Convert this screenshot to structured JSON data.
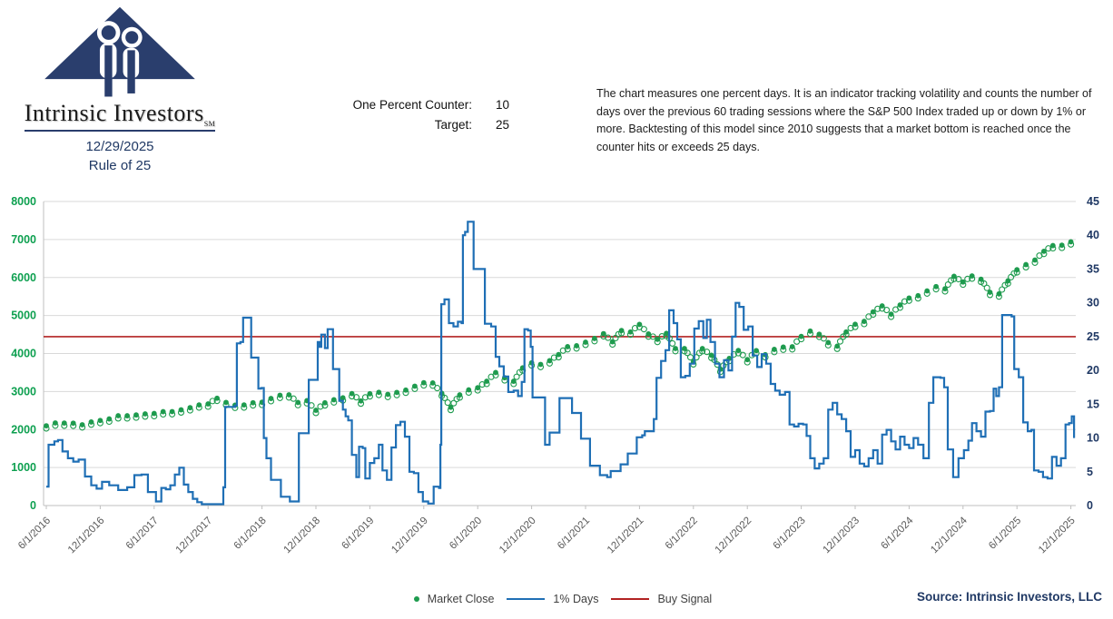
{
  "header": {
    "logo_title": "Intrinsic Investors",
    "logo_trademark": "SM",
    "date": "12/29/2025",
    "subtitle": "Rule of 25",
    "counter_label": "One Percent Counter:",
    "counter_value": "10",
    "target_label": "Target:",
    "target_value": "25",
    "description": "The chart measures one percent days.  It is an indicator tracking volatility and counts the number of days over the previous 60 trading sessions where the S&P 500 Index traded up or down by 1% or more. Backtesting of this model since 2010 suggests that a market bottom is reached once the counter hits or exceeds 25 days."
  },
  "legend": {
    "items": [
      {
        "label": "Market Close",
        "marker": "dot",
        "color": "#1e9b4e"
      },
      {
        "label": "1% Days",
        "marker": "line",
        "color": "#1f6fb5"
      },
      {
        "label": "Buy Signal",
        "marker": "line",
        "color": "#b22222"
      }
    ]
  },
  "footer": {
    "source": "Source: Intrinsic Investors, LLC"
  },
  "chart_data": {
    "type": "line",
    "title": "Rule of 25",
    "grid": true,
    "legend_position": "bottom",
    "x_tick_labels": [
      "6/1/2016",
      "12/1/2016",
      "6/1/2017",
      "12/1/2017",
      "6/1/2018",
      "12/1/2018",
      "6/1/2019",
      "12/1/2019",
      "6/1/2020",
      "12/1/2020",
      "6/1/2021",
      "12/1/2021",
      "6/1/2022",
      "12/1/2022",
      "6/1/2023",
      "12/1/2023",
      "6/1/2024",
      "12/1/2024",
      "6/1/2025",
      "12/1/2025"
    ],
    "months_per_tick": 6,
    "left_axis": {
      "min": 0,
      "max": 8000,
      "step": 1000,
      "label_color": "#0ea050"
    },
    "right_axis": {
      "min": 0,
      "max": 45,
      "step": 5,
      "label_color": "#1f3864"
    },
    "colors": {
      "grid": "#d9d9d9",
      "axis": "#bfbfbf",
      "x_labels": "#595959"
    },
    "series": [
      {
        "name": "Market Close",
        "axis": "left",
        "style": "scatter",
        "color": "#1e9b4e",
        "monthly_values": [
          2099,
          2174,
          2171,
          2168,
          2126,
          2199,
          2239,
          2279,
          2364,
          2363,
          2384,
          2412,
          2423,
          2470,
          2472,
          2519,
          2575,
          2648,
          2674,
          2824,
          2714,
          2641,
          2648,
          2705,
          2718,
          2816,
          2902,
          2914,
          2712,
          2760,
          2507,
          2704,
          2784,
          2834,
          2946,
          2752,
          2942,
          2980,
          2926,
          2977,
          3038,
          3141,
          3231,
          3226,
          2954,
          2585,
          2912,
          3044,
          3100,
          3271,
          3500,
          3363,
          3270,
          3622,
          3756,
          3714,
          3811,
          3973,
          4181,
          4204,
          4298,
          4395,
          4523,
          4308,
          4605,
          4567,
          4766,
          4516,
          4374,
          4530,
          4132,
          4132,
          3785,
          4130,
          3955,
          3586,
          3872,
          4080,
          3840,
          4077,
          3970,
          4109,
          4169,
          4180,
          4450,
          4589,
          4508,
          4288,
          4194,
          4568,
          4770,
          4846,
          5096,
          5254,
          5036,
          5278,
          5460,
          5522,
          5648,
          5762,
          5705,
          6032,
          5882,
          6041,
          5955,
          5612,
          5569,
          5912,
          6205,
          6340,
          6460,
          6690,
          6840,
          6850,
          6940
        ]
      },
      {
        "name": "1% Days",
        "axis": "right",
        "style": "step-line",
        "color": "#1f6fb5",
        "points": [
          [
            0,
            2.8
          ],
          [
            0.25,
            9
          ],
          [
            0.9,
            9.5
          ],
          [
            1.3,
            9.7
          ],
          [
            1.8,
            8
          ],
          [
            2.4,
            7
          ],
          [
            3,
            6.5
          ],
          [
            3.6,
            6.8
          ],
          [
            4.3,
            4.3
          ],
          [
            5,
            3
          ],
          [
            5.6,
            2.5
          ],
          [
            6.2,
            3.5
          ],
          [
            7,
            3
          ],
          [
            8,
            2.3
          ],
          [
            9,
            2.7
          ],
          [
            9.8,
            4.5
          ],
          [
            10.6,
            4.6
          ],
          [
            11.3,
            2
          ],
          [
            12.2,
            0.6
          ],
          [
            12.8,
            2.6
          ],
          [
            13.3,
            2.4
          ],
          [
            13.8,
            3
          ],
          [
            14.3,
            4.6
          ],
          [
            14.8,
            5.6
          ],
          [
            15.3,
            3.1
          ],
          [
            15.8,
            2
          ],
          [
            16.3,
            1
          ],
          [
            16.8,
            0.5
          ],
          [
            17.3,
            0.2
          ],
          [
            19.2,
            0.2
          ],
          [
            19.7,
            2.7
          ],
          [
            19.9,
            14.6
          ],
          [
            21.0,
            14.8
          ],
          [
            21.2,
            24
          ],
          [
            21.6,
            24.2
          ],
          [
            21.9,
            27.8
          ],
          [
            22.6,
            27.8
          ],
          [
            22.8,
            21.9
          ],
          [
            23.4,
            21.9
          ],
          [
            23.6,
            17.3
          ],
          [
            23.9,
            17.4
          ],
          [
            24.2,
            10
          ],
          [
            24.5,
            7
          ],
          [
            25,
            3.8
          ],
          [
            25.9,
            3.8
          ],
          [
            26.1,
            1.3
          ],
          [
            26.9,
            1.3
          ],
          [
            27.1,
            0.6
          ],
          [
            28,
            0.6
          ],
          [
            28.1,
            10.7
          ],
          [
            28.7,
            10.7
          ],
          [
            29.2,
            18.6
          ],
          [
            30,
            18.6
          ],
          [
            30.2,
            24.2
          ],
          [
            30.4,
            23.5
          ],
          [
            30.6,
            25.3
          ],
          [
            31,
            23.3
          ],
          [
            31.3,
            26.1
          ],
          [
            31.9,
            20.2
          ],
          [
            32.4,
            20.2
          ],
          [
            32.6,
            15.5
          ],
          [
            33,
            14.2
          ],
          [
            33.3,
            13.2
          ],
          [
            33.6,
            12.6
          ],
          [
            34,
            7.5
          ],
          [
            34.5,
            4.2
          ],
          [
            34.8,
            8.7
          ],
          [
            35.2,
            8.5
          ],
          [
            35.5,
            4
          ],
          [
            36,
            6.3
          ],
          [
            36.5,
            7
          ],
          [
            37,
            9
          ],
          [
            37.4,
            5.2
          ],
          [
            37.9,
            3.8
          ],
          [
            38.4,
            8.6
          ],
          [
            38.9,
            11.9
          ],
          [
            39.4,
            12.4
          ],
          [
            39.9,
            10.2
          ],
          [
            40.4,
            5
          ],
          [
            40.9,
            4.8
          ],
          [
            41.4,
            2
          ],
          [
            41.9,
            0.6
          ],
          [
            42.5,
            0.3
          ],
          [
            43.1,
            2.8
          ],
          [
            43.7,
            2.6
          ],
          [
            43.85,
            9
          ],
          [
            43.95,
            29.8
          ],
          [
            44.3,
            30.5
          ],
          [
            44.8,
            27
          ],
          [
            45.3,
            26.5
          ],
          [
            45.8,
            27.2
          ],
          [
            46.2,
            27
          ],
          [
            46.35,
            40
          ],
          [
            46.6,
            40.5
          ],
          [
            46.9,
            42
          ],
          [
            47.4,
            42
          ],
          [
            47.55,
            35
          ],
          [
            48.6,
            35
          ],
          [
            48.8,
            26.9
          ],
          [
            49.5,
            26.5
          ],
          [
            50,
            22
          ],
          [
            50.4,
            20.6
          ],
          [
            50.9,
            19.1
          ],
          [
            51.4,
            16.8
          ],
          [
            52,
            17
          ],
          [
            52.5,
            16.2
          ],
          [
            52.9,
            18.3
          ],
          [
            53.2,
            26.1
          ],
          [
            53.6,
            25.9
          ],
          [
            53.9,
            23.5
          ],
          [
            54.1,
            16
          ],
          [
            55.3,
            16
          ],
          [
            55.5,
            9
          ],
          [
            56,
            10.8
          ],
          [
            56.9,
            10.8
          ],
          [
            57.1,
            15.9
          ],
          [
            58.3,
            15.9
          ],
          [
            58.5,
            13.7
          ],
          [
            59.3,
            13.7
          ],
          [
            59.5,
            9.9
          ],
          [
            60.3,
            9.9
          ],
          [
            60.5,
            5.9
          ],
          [
            61.4,
            5.9
          ],
          [
            61.6,
            4.5
          ],
          [
            62.4,
            4.2
          ],
          [
            62.8,
            5.1
          ],
          [
            63.7,
            5.1
          ],
          [
            63.9,
            6.1
          ],
          [
            64.5,
            6.1
          ],
          [
            64.7,
            7.7
          ],
          [
            65.4,
            7.7
          ],
          [
            65.7,
            10.1
          ],
          [
            66.3,
            10.4
          ],
          [
            66.6,
            11
          ],
          [
            67.6,
            12.8
          ],
          [
            67.9,
            18.9
          ],
          [
            68.4,
            21.4
          ],
          [
            68.9,
            23
          ],
          [
            69.3,
            28.9
          ],
          [
            69.8,
            27
          ],
          [
            70.2,
            24.6
          ],
          [
            70.6,
            19
          ],
          [
            71.1,
            19.2
          ],
          [
            71.6,
            21
          ],
          [
            72.1,
            26.2
          ],
          [
            72.6,
            27.3
          ],
          [
            73.1,
            24.8
          ],
          [
            73.5,
            27.5
          ],
          [
            73.9,
            24.2
          ],
          [
            74.4,
            21
          ],
          [
            74.9,
            19
          ],
          [
            75.4,
            21.5
          ],
          [
            75.9,
            20
          ],
          [
            76.3,
            25
          ],
          [
            76.7,
            30
          ],
          [
            77.1,
            29.4
          ],
          [
            77.6,
            26
          ],
          [
            78.1,
            26.5
          ],
          [
            78.6,
            22.2
          ],
          [
            79.1,
            20.5
          ],
          [
            79.6,
            22.4
          ],
          [
            80.1,
            21
          ],
          [
            80.6,
            18
          ],
          [
            81.1,
            17
          ],
          [
            81.6,
            16.4
          ],
          [
            82.2,
            16.8
          ],
          [
            82.7,
            12
          ],
          [
            83.2,
            11.7
          ],
          [
            83.7,
            12.1
          ],
          [
            84.2,
            12
          ],
          [
            84.6,
            10.3
          ],
          [
            85,
            7
          ],
          [
            85.5,
            5.5
          ],
          [
            86,
            6.2
          ],
          [
            86.5,
            7
          ],
          [
            87,
            14.2
          ],
          [
            87.5,
            15.2
          ],
          [
            88,
            13.5
          ],
          [
            88.5,
            12.8
          ],
          [
            89,
            11
          ],
          [
            89.5,
            7.2
          ],
          [
            90,
            8.2
          ],
          [
            90.5,
            6.2
          ],
          [
            91,
            5.8
          ],
          [
            91.5,
            7
          ],
          [
            92,
            8.2
          ],
          [
            92.5,
            6.2
          ],
          [
            93,
            10.5
          ],
          [
            93.5,
            11.2
          ],
          [
            94,
            9.5
          ],
          [
            94.5,
            8.3
          ],
          [
            95,
            10.2
          ],
          [
            95.5,
            9
          ],
          [
            96,
            8.5
          ],
          [
            96.5,
            10
          ],
          [
            97,
            9
          ],
          [
            97.6,
            7
          ],
          [
            98.2,
            15.2
          ],
          [
            98.7,
            19
          ],
          [
            99.5,
            18.9
          ],
          [
            99.9,
            17.5
          ],
          [
            100.3,
            8.3
          ],
          [
            100.9,
            4.2
          ],
          [
            101.5,
            7
          ],
          [
            102.1,
            8.2
          ],
          [
            102.6,
            9.6
          ],
          [
            103,
            12.2
          ],
          [
            103.5,
            11
          ],
          [
            104,
            10.2
          ],
          [
            104.5,
            13.9
          ],
          [
            105,
            14
          ],
          [
            105.4,
            17.3
          ],
          [
            105.7,
            16.2
          ],
          [
            106,
            17.5
          ],
          [
            106.35,
            28.2
          ],
          [
            107.4,
            28
          ],
          [
            107.7,
            20.2
          ],
          [
            108.2,
            19
          ],
          [
            108.7,
            12.3
          ],
          [
            109.2,
            11
          ],
          [
            109.6,
            11.2
          ],
          [
            109.9,
            5.2
          ],
          [
            110.4,
            5
          ],
          [
            110.9,
            4.2
          ],
          [
            111.4,
            4
          ],
          [
            111.9,
            7.2
          ],
          [
            112.4,
            5.9
          ],
          [
            112.9,
            7
          ],
          [
            113.4,
            12
          ],
          [
            113.8,
            12.2
          ],
          [
            114.1,
            13.2
          ],
          [
            114.35,
            10
          ]
        ]
      },
      {
        "name": "Buy Signal",
        "axis": "right",
        "style": "horizontal-line",
        "color": "#b22222",
        "value": 25
      }
    ]
  }
}
